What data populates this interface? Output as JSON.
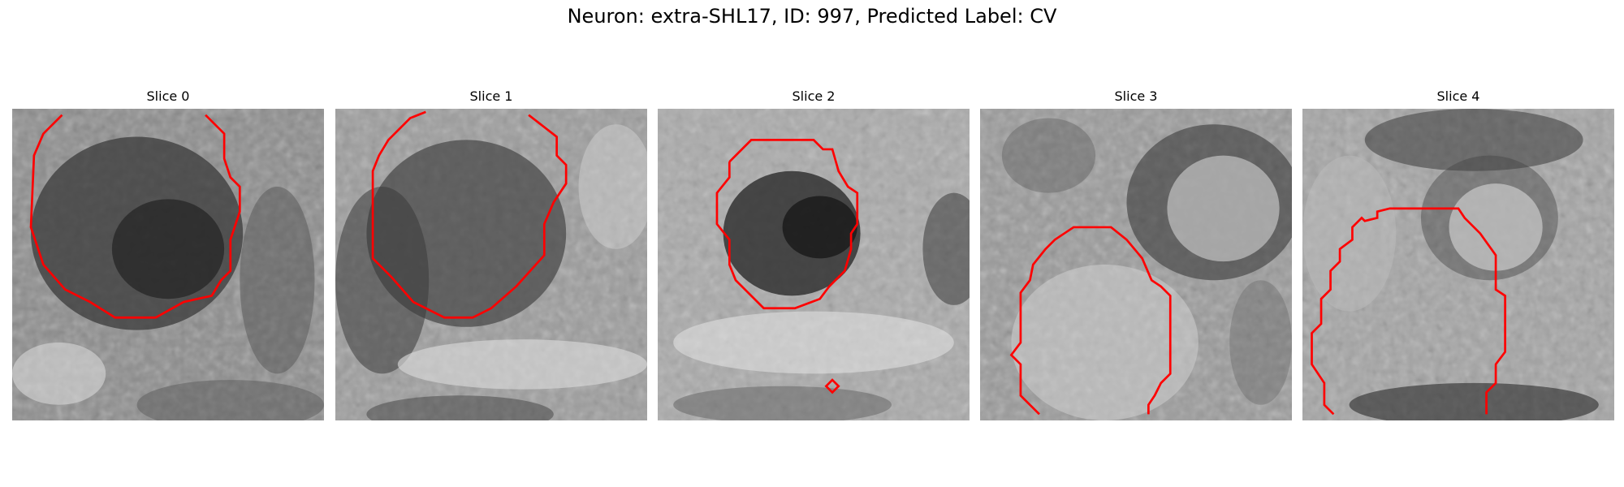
{
  "title": "Neuron: extra-SHL17, ID: 997, Predicted Label: CV",
  "contour_color": "#ff0000",
  "slices": [
    {
      "label": "Slice 0"
    },
    {
      "label": "Slice 1"
    },
    {
      "label": "Slice 2"
    },
    {
      "label": "Slice 3"
    },
    {
      "label": "Slice 4"
    }
  ]
}
